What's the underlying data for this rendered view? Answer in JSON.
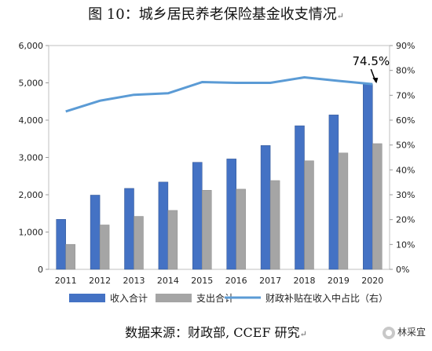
{
  "title": "图 10：城乡居民养老保险基金收支情况",
  "source": "数据来源：财政部, CCEF 研究",
  "paragraph_mark": "↵",
  "watermark": "林采宜",
  "chart_data": {
    "type": "bar",
    "categories": [
      "2011",
      "2012",
      "2013",
      "2014",
      "2015",
      "2016",
      "2017",
      "2018",
      "2019",
      "2020"
    ],
    "series": [
      {
        "name": "收入合计",
        "type": "bar",
        "axis": "left",
        "color": "#4472c4",
        "values": [
          1340,
          1990,
          2170,
          2340,
          2870,
          2960,
          3320,
          3850,
          4140,
          4960
        ]
      },
      {
        "name": "支出合计",
        "type": "bar",
        "axis": "left",
        "color": "#a5a5a5",
        "values": [
          670,
          1190,
          1420,
          1580,
          2120,
          2150,
          2380,
          2910,
          3120,
          3370
        ]
      },
      {
        "name": "财政补贴在收入中占比（右）",
        "type": "line",
        "axis": "right",
        "color": "#5b9bd5",
        "values": [
          63.5,
          67.8,
          70.2,
          70.8,
          75.3,
          75.0,
          75.0,
          77.2,
          75.8,
          74.5
        ]
      }
    ],
    "ylim_left": [
      0,
      6000
    ],
    "yticks_left": [
      "0",
      "1,000",
      "2,000",
      "3,000",
      "4,000",
      "5,000",
      "6,000"
    ],
    "ylim_right": [
      0,
      90
    ],
    "yticks_right": [
      "0%",
      "10%",
      "20%",
      "30%",
      "40%",
      "50%",
      "60%",
      "70%",
      "80%",
      "90%"
    ],
    "annotation": "74.5%",
    "grid": false,
    "legend_position": "bottom"
  }
}
